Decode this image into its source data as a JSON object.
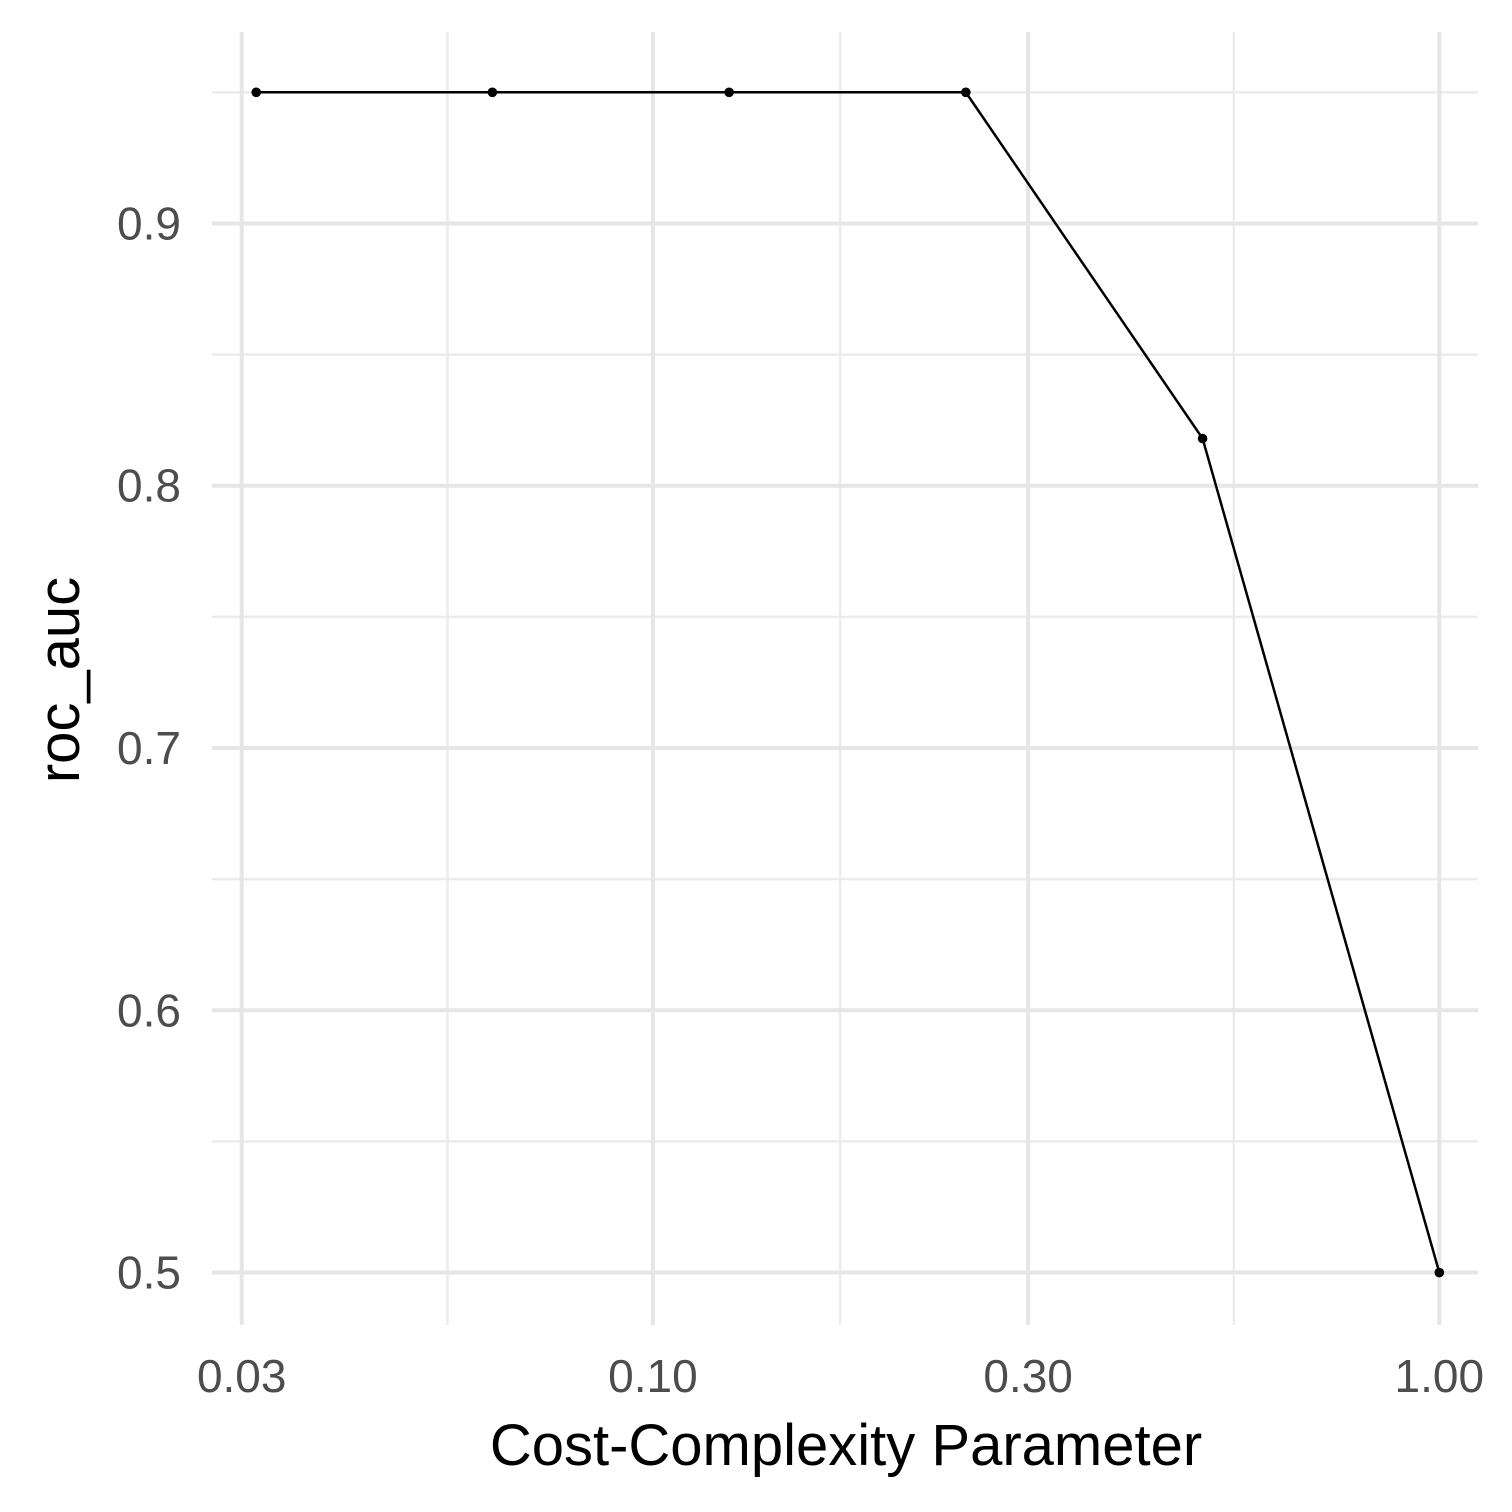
{
  "chart_data": {
    "type": "line",
    "title": "",
    "xlabel": "Cost-Complexity Parameter",
    "ylabel": "roc_auc",
    "x_scale": "log10",
    "xlim": [
      0.0275,
      1.12
    ],
    "ylim": [
      0.48,
      0.973
    ],
    "x_ticks": [
      {
        "value": 0.03,
        "label": "0.03"
      },
      {
        "value": 0.1,
        "label": "0.10"
      },
      {
        "value": 0.3,
        "label": "0.30"
      },
      {
        "value": 1.0,
        "label": "1.00"
      }
    ],
    "x_minor_ticks": [
      0.0548,
      0.173,
      0.548
    ],
    "y_ticks": [
      {
        "value": 0.5,
        "label": "0.5"
      },
      {
        "value": 0.6,
        "label": "0.6"
      },
      {
        "value": 0.7,
        "label": "0.7"
      },
      {
        "value": 0.8,
        "label": "0.8"
      },
      {
        "value": 0.9,
        "label": "0.9"
      }
    ],
    "y_minor_ticks": [
      0.55,
      0.65,
      0.75,
      0.85,
      0.95
    ],
    "grid": true,
    "legend": "none",
    "series": [
      {
        "x": [
          0.0313,
          0.0625,
          0.125,
          0.25,
          0.5,
          1.0
        ],
        "y": [
          0.95,
          0.95,
          0.95,
          0.95,
          0.818,
          0.5
        ],
        "color": "#000000"
      }
    ]
  }
}
